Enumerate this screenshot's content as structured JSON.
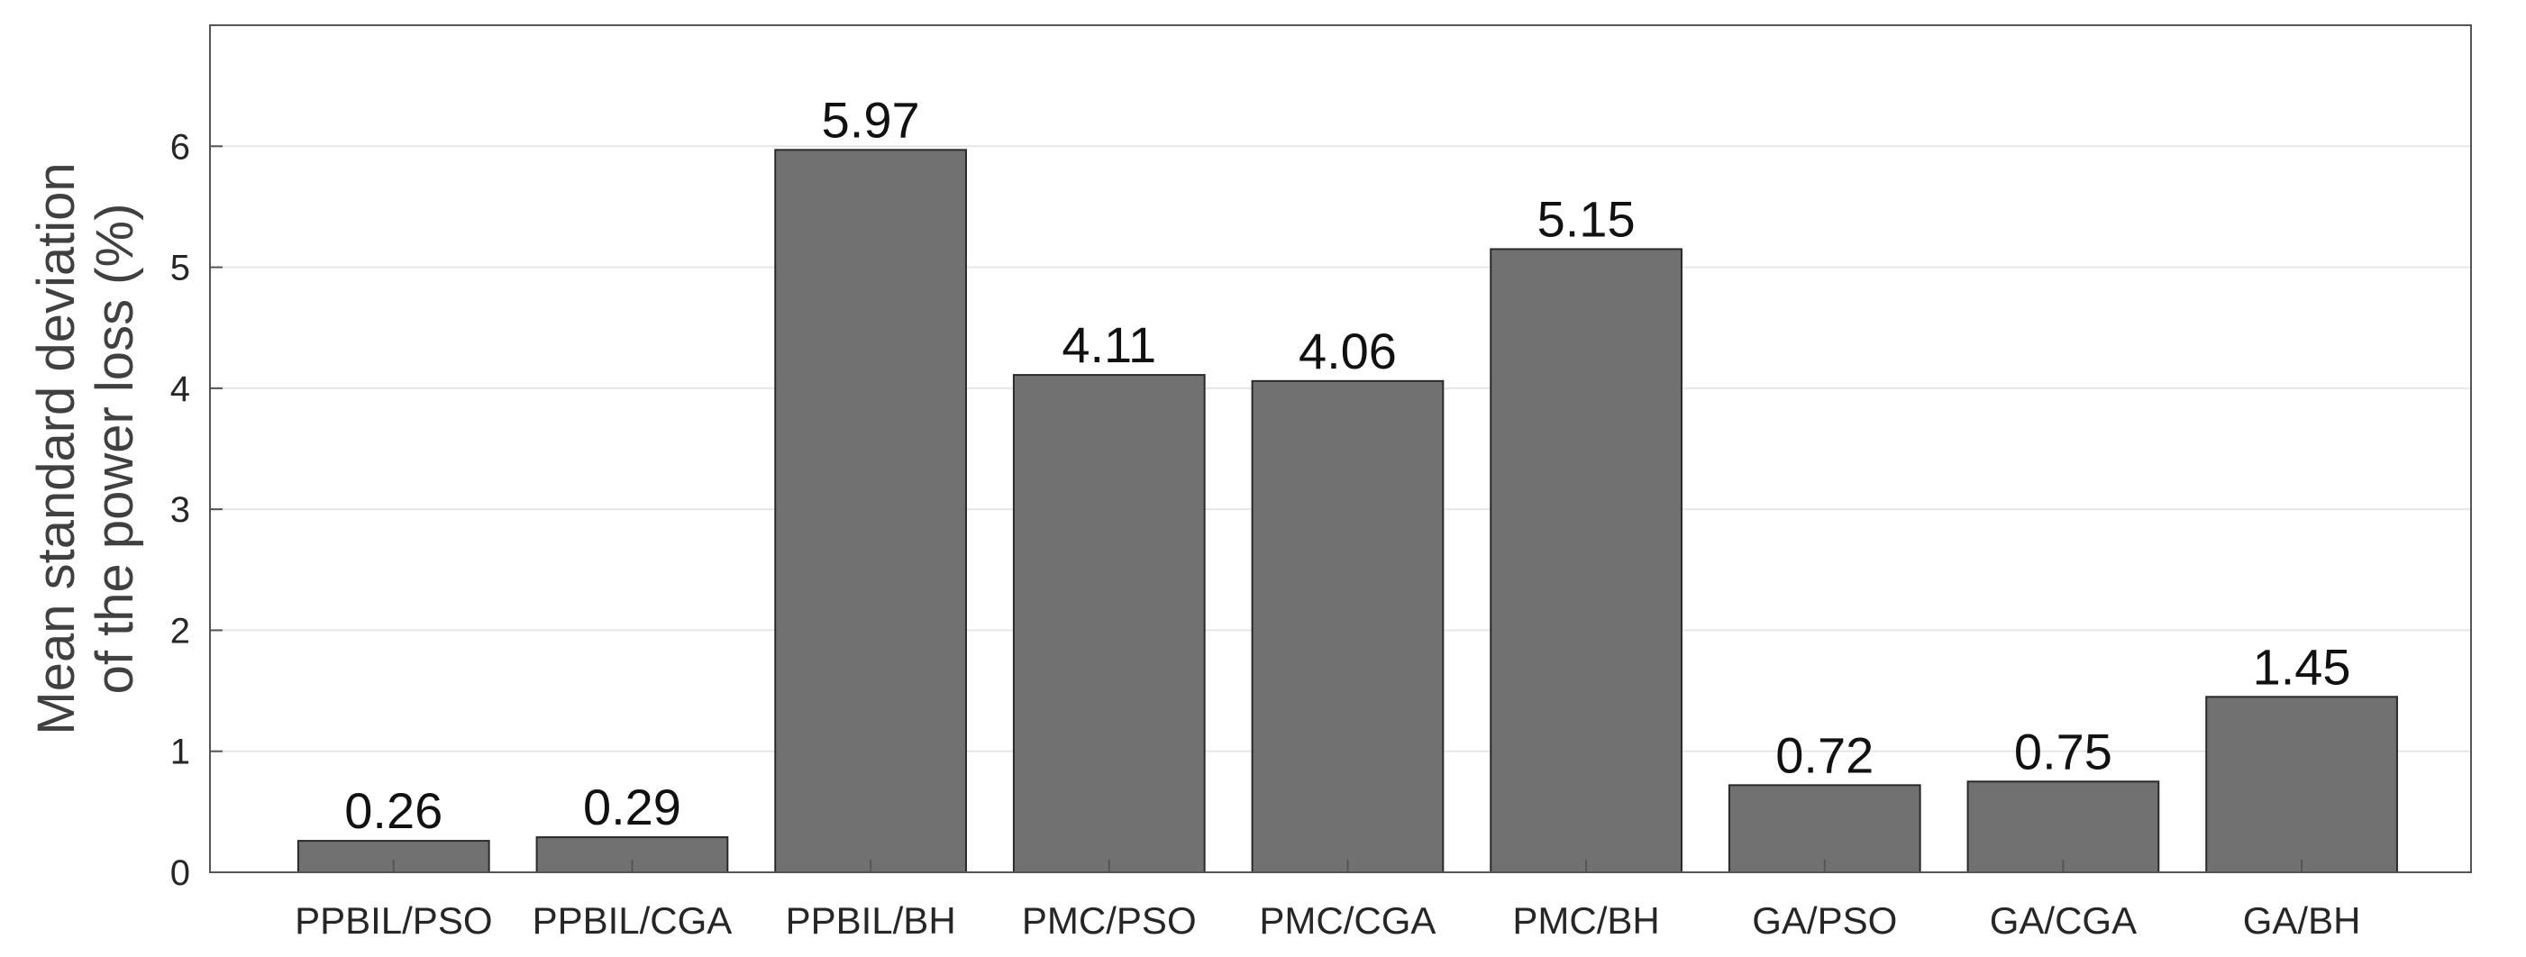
{
  "chart_data": {
    "type": "bar",
    "title": "",
    "xlabel": "",
    "ylabel_lines": [
      "Mean standard deviation",
      "of the power loss (%)"
    ],
    "categories": [
      "PPBIL/PSO",
      "PPBIL/CGA",
      "PPBIL/BH",
      "PMC/PSO",
      "PMC/CGA",
      "PMC/BH",
      "GA/PSO",
      "GA/CGA",
      "GA/BH"
    ],
    "values": [
      0.26,
      0.29,
      5.97,
      4.11,
      4.06,
      5.15,
      0.72,
      0.75,
      1.45
    ],
    "value_labels": [
      "0.26",
      "0.29",
      "5.97",
      "4.11",
      "4.06",
      "5.15",
      "0.72",
      "0.75",
      "1.45"
    ],
    "ylim": [
      0,
      7
    ],
    "yticks": [
      0,
      1,
      2,
      3,
      4,
      5,
      6
    ],
    "ytick_labels": [
      "0",
      "1",
      "2",
      "3",
      "4",
      "5",
      "6"
    ],
    "grid": true,
    "legend": false,
    "colors": {
      "bar": "#717172",
      "bar_edge": "#2a2a2a",
      "grid": "#e6e6e6",
      "axis": "#555555"
    }
  }
}
